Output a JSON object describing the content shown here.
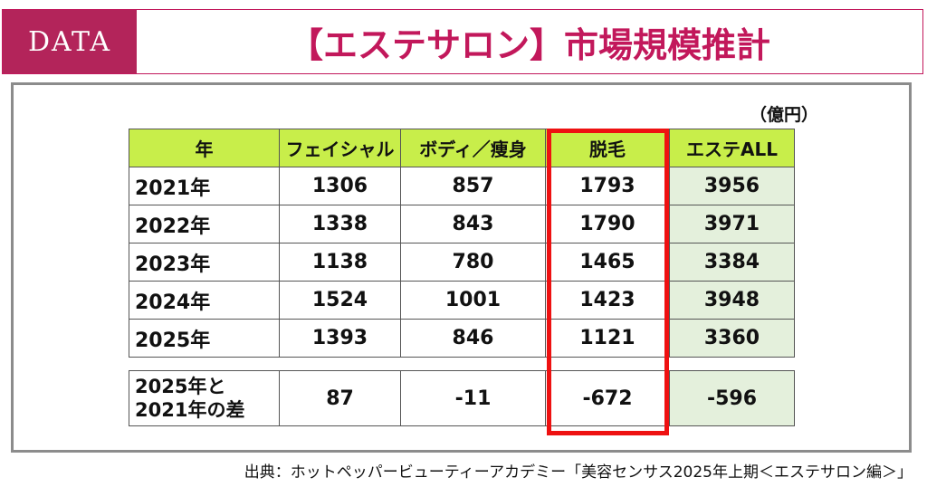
{
  "header": {
    "badge": "DATA",
    "title": "【エステサロン】市場規模推計"
  },
  "unit": "（億円）",
  "table": {
    "headers": [
      "年",
      "フェイシャル",
      "ボディ／痩身",
      "脱毛",
      "エステALL"
    ],
    "rows": [
      {
        "year": "2021年",
        "facial": "1306",
        "body": "857",
        "hair": "1793",
        "all": "3956"
      },
      {
        "year": "2022年",
        "facial": "1338",
        "body": "843",
        "hair": "1790",
        "all": "3971"
      },
      {
        "year": "2023年",
        "facial": "1138",
        "body": "780",
        "hair": "1465",
        "all": "3384"
      },
      {
        "year": "2024年",
        "facial": "1524",
        "body": "1001",
        "hair": "1423",
        "all": "3948"
      },
      {
        "year": "2025年",
        "facial": "1393",
        "body": "846",
        "hair": "1121",
        "all": "3360"
      }
    ],
    "diff": {
      "label_line1": "2025年と",
      "label_line2": "2021年の差",
      "facial": "87",
      "body": "-11",
      "hair": "-672",
      "all": "-596"
    }
  },
  "source": "出典：ホットペッパービューティーアカデミー「美容センサス2025年上期＜エステサロン編＞」",
  "colors": {
    "brand": "#b3245a",
    "header_cell": "#c8ee4a",
    "all_column": "#e4f0dc",
    "highlight_border": "#ee1111"
  }
}
